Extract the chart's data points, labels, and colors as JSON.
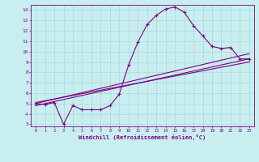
{
  "xlabel": "Windchill (Refroidissement éolien,°C)",
  "bg_color": "#c8eef0",
  "grid_color": "#aad8dc",
  "line_color": "#800080",
  "xlim": [
    -0.5,
    23.5
  ],
  "ylim": [
    2.8,
    14.5
  ],
  "xticks": [
    0,
    1,
    2,
    3,
    4,
    5,
    6,
    7,
    8,
    9,
    10,
    11,
    12,
    13,
    14,
    15,
    16,
    17,
    18,
    19,
    20,
    21,
    22,
    23
  ],
  "yticks": [
    3,
    4,
    5,
    6,
    7,
    8,
    9,
    10,
    11,
    12,
    13,
    14
  ],
  "line1_x": [
    0,
    1,
    2,
    3,
    4,
    5,
    6,
    7,
    8,
    9,
    10,
    11,
    12,
    13,
    14,
    15,
    16,
    17,
    18,
    19,
    20,
    21,
    22,
    23
  ],
  "line1_y": [
    5.0,
    4.9,
    5.1,
    3.0,
    4.8,
    4.4,
    4.4,
    4.4,
    4.8,
    5.9,
    8.7,
    10.9,
    12.6,
    13.5,
    14.1,
    14.3,
    13.8,
    12.5,
    11.5,
    10.5,
    10.3,
    10.4,
    9.3,
    9.3
  ],
  "line2_x": [
    0,
    23
  ],
  "line2_y": [
    5.0,
    9.8
  ],
  "line3_x": [
    0,
    23
  ],
  "line3_y": [
    4.8,
    9.3
  ],
  "line4_x": [
    0,
    23
  ],
  "line4_y": [
    5.1,
    9.0
  ]
}
